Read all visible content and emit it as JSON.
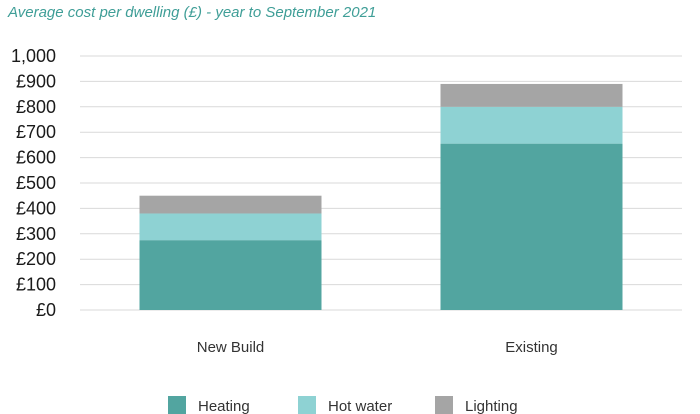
{
  "chart_data": {
    "type": "bar",
    "stacked": true,
    "title": "Average cost per dwelling (£) - year to September 2021",
    "xlabel": "",
    "ylabel": "",
    "categories": [
      "New Build",
      "Existing"
    ],
    "series": [
      {
        "name": "Heating",
        "values": [
          275,
          655
        ],
        "color": "#52a5a0"
      },
      {
        "name": "Hot water",
        "values": [
          105,
          145
        ],
        "color": "#8ed2d3"
      },
      {
        "name": "Lighting",
        "values": [
          70,
          90
        ],
        "color": "#a5a5a5"
      }
    ],
    "ylim": [
      0,
      1000
    ],
    "yticks": [
      0,
      100,
      200,
      300,
      400,
      500,
      600,
      700,
      800,
      900,
      1000
    ],
    "ytick_labels": [
      "£0",
      "£100",
      "£200",
      "£300",
      "£400",
      "£500",
      "£600",
      "£700",
      "£800",
      "£900",
      "1,000"
    ],
    "grid": true,
    "legend_position": "bottom"
  }
}
